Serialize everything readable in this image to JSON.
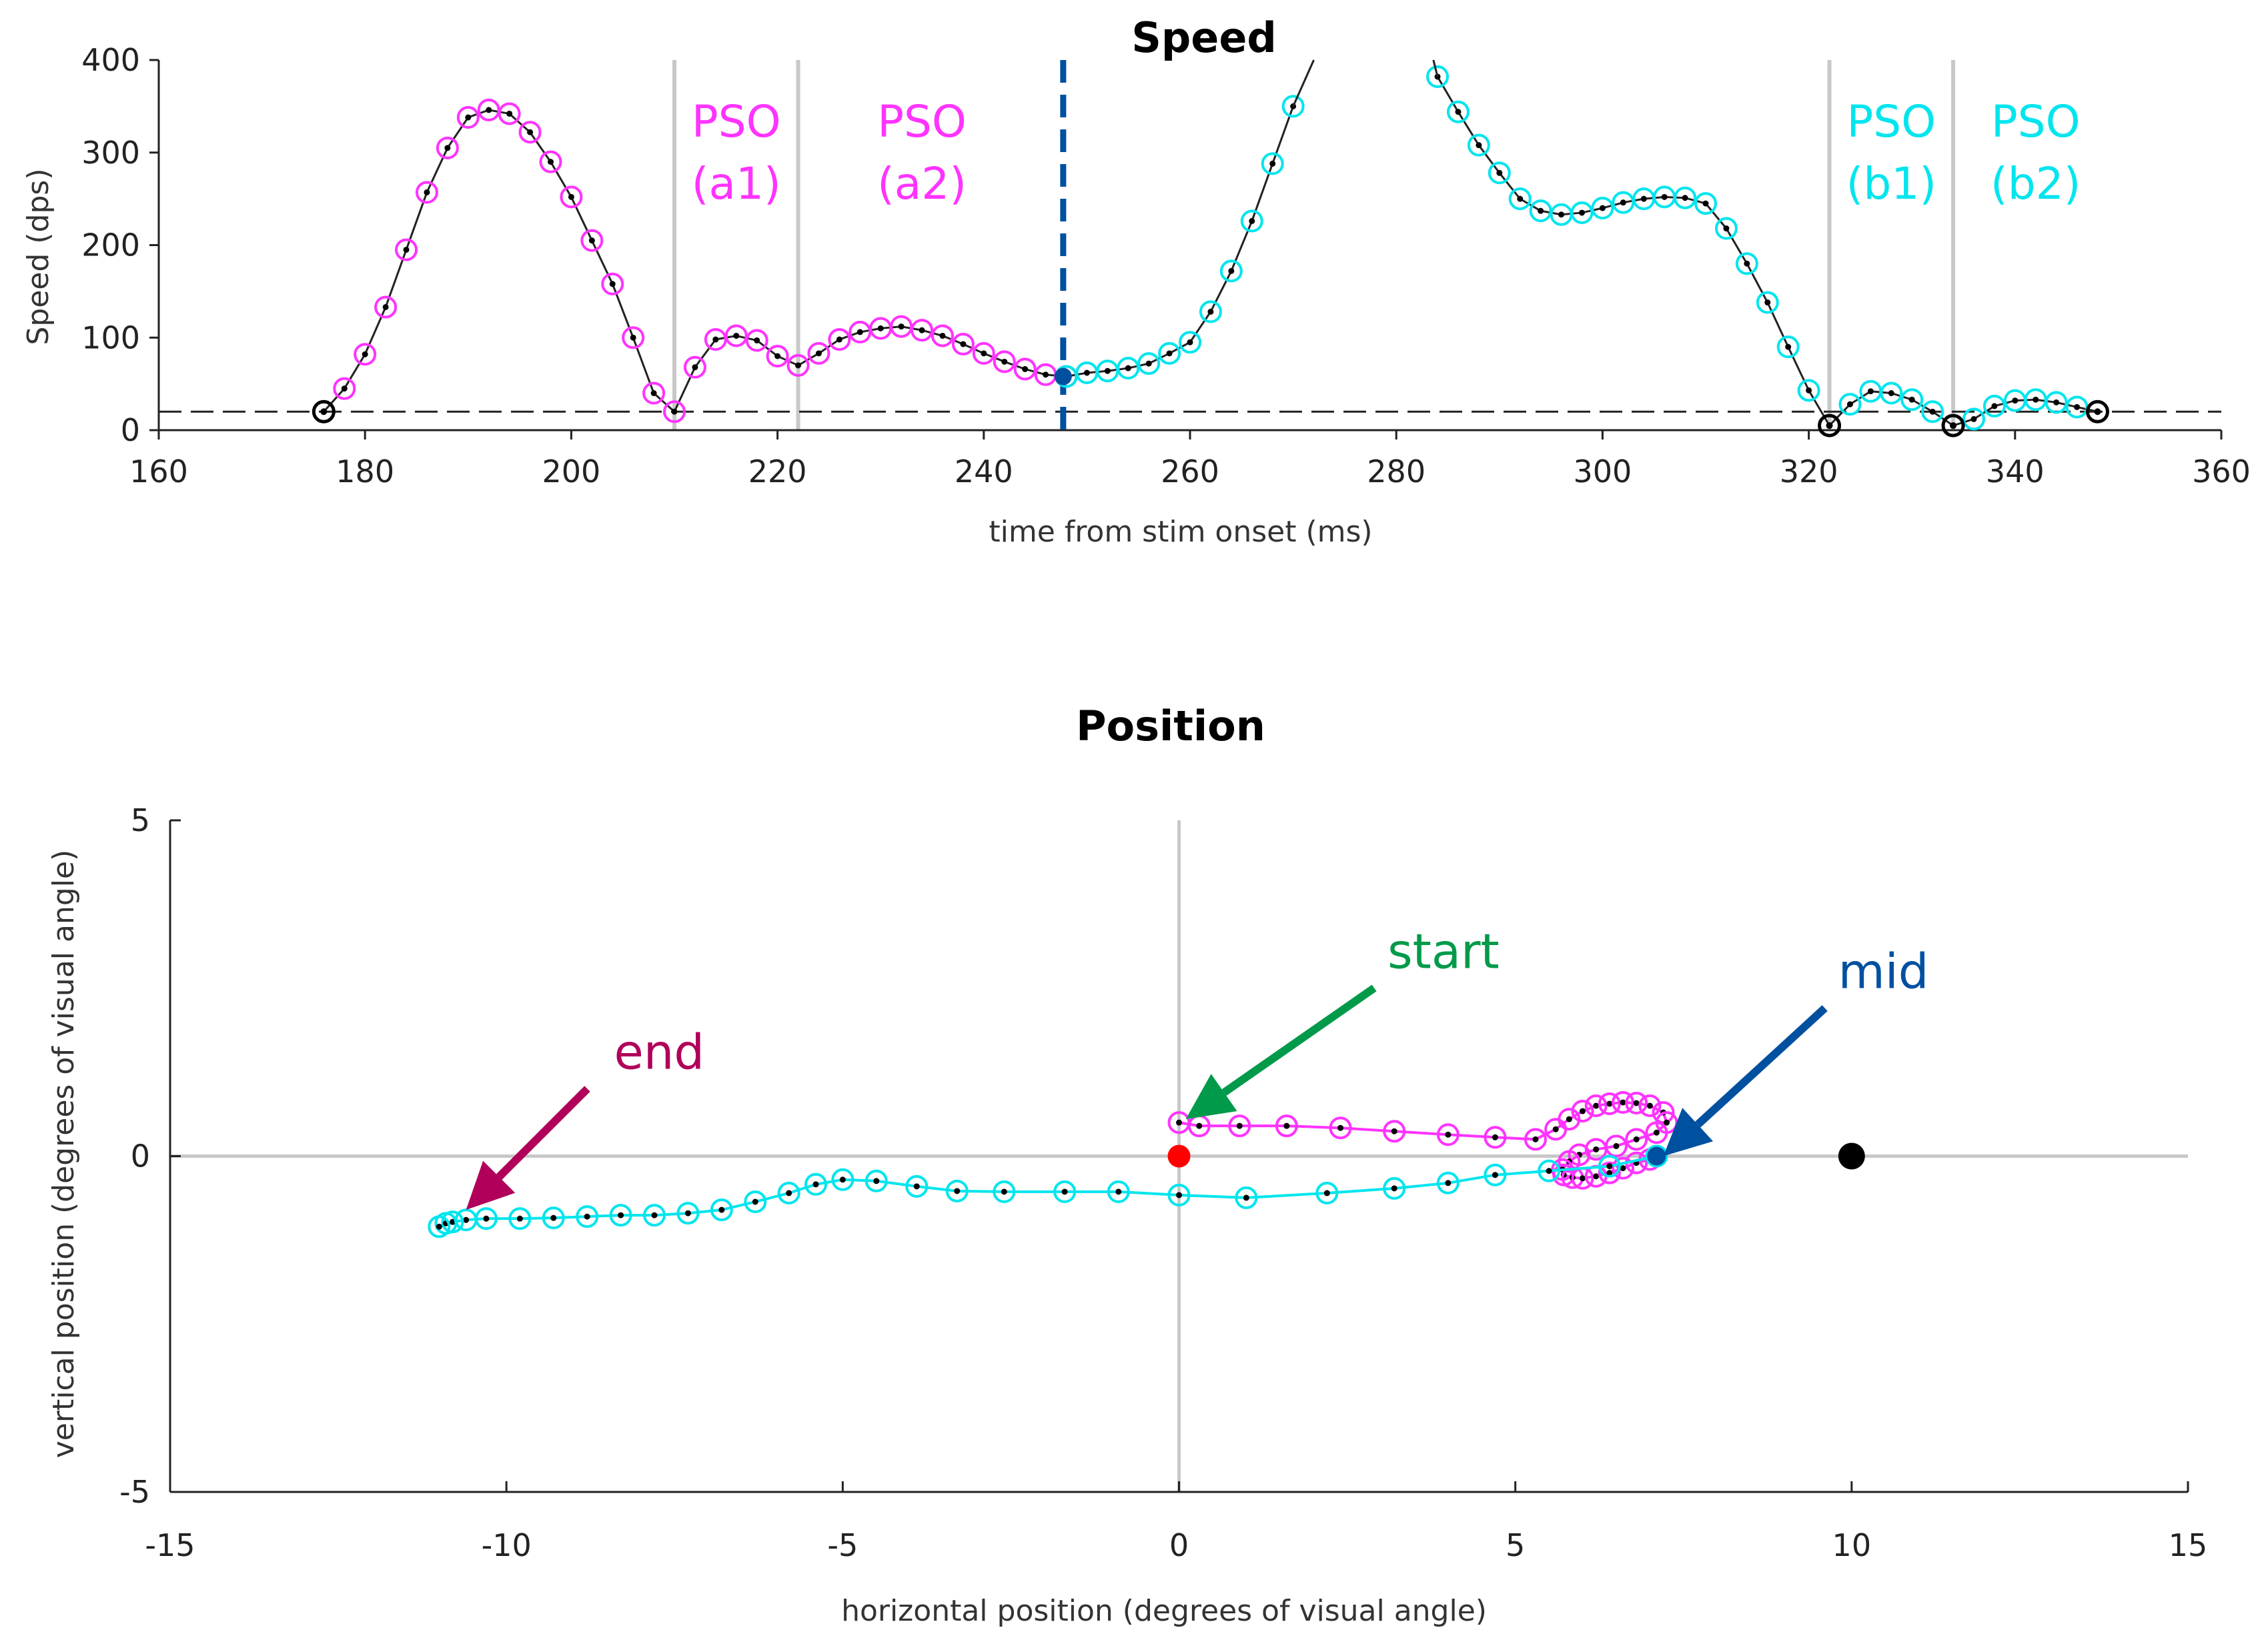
{
  "colors": {
    "pso_a": "#ff33ff",
    "pso_b": "#00e5ee",
    "mid": "#0050a0",
    "start": "#009a4a",
    "end": "#b0005a",
    "curve": "#222222",
    "origin_dot": "#ff0000",
    "target_dot": "#000000",
    "gray": "#c8c8c8"
  },
  "chart_data": [
    {
      "type": "line",
      "title": "Speed",
      "xlabel": "time  from stim onset (ms)",
      "ylabel": "Speed (dps)",
      "xlim": [
        160,
        360
      ],
      "ylim": [
        0,
        400
      ],
      "xticks": [
        "160",
        "180",
        "200",
        "220",
        "240",
        "260",
        "280",
        "300",
        "320",
        "340",
        "360"
      ],
      "yticks": [
        "0",
        "100",
        "200",
        "300",
        "400"
      ],
      "threshold": 20,
      "midline_time": 247.7,
      "pso_boundaries": [
        210,
        222,
        322,
        334
      ],
      "pso_labels": [
        {
          "line1": "PSO",
          "line2": "(a1)",
          "group": "a",
          "x": 216
        },
        {
          "line1": "PSO",
          "line2": "(a2)",
          "group": "a",
          "x": 234
        },
        {
          "line1": "PSO",
          "line2": "(b1)",
          "group": "b",
          "x": 328
        },
        {
          "line1": "PSO",
          "line2": "(b2)",
          "group": "b",
          "x": 342
        }
      ],
      "series": [
        {
          "name": "first saccade (magenta)",
          "group": "a",
          "x": [
            176,
            178,
            180,
            182,
            184,
            186,
            188,
            190,
            192,
            194,
            196,
            198,
            200,
            202,
            204,
            206,
            208,
            210,
            212,
            214,
            216,
            218,
            220,
            222,
            224,
            226,
            228,
            230,
            232,
            234,
            236,
            238,
            240,
            242,
            244,
            246,
            248
          ],
          "y": [
            20,
            45,
            82,
            133,
            195,
            257,
            305,
            338,
            346,
            342,
            322,
            290,
            252,
            205,
            158,
            100,
            40,
            20,
            68,
            98,
            102,
            97,
            80,
            70,
            83,
            98,
            106,
            110,
            112,
            108,
            102,
            93,
            83,
            74,
            66,
            60,
            58
          ]
        },
        {
          "name": "second saccade rising (cyan)",
          "group": "b",
          "x": [
            248,
            250,
            252,
            254,
            256,
            258,
            260,
            262,
            264,
            266,
            268,
            270
          ],
          "y": [
            58,
            62,
            64,
            67,
            72,
            83,
            95,
            128,
            172,
            226,
            288,
            350
          ]
        },
        {
          "name": "second saccade falling (cyan)",
          "group": "b",
          "x": [
            284,
            286,
            288,
            290,
            292,
            294,
            296,
            298,
            300,
            302,
            304,
            306,
            308,
            310,
            312,
            314,
            316,
            318,
            320,
            322,
            324,
            326,
            328,
            330,
            332,
            334,
            336,
            338,
            340,
            342,
            344,
            346,
            348
          ],
          "y": [
            382,
            344,
            308,
            278,
            250,
            237,
            233,
            235,
            240,
            246,
            250,
            252,
            251,
            245,
            218,
            180,
            138,
            90,
            43,
            5,
            28,
            42,
            40,
            33,
            20,
            5,
            12,
            26,
            32,
            33,
            30,
            25,
            20
          ]
        }
      ],
      "bold_markers": [
        {
          "x": 176,
          "y": 20
        },
        {
          "x": 322,
          "y": 5
        },
        {
          "x": 334,
          "y": 5
        },
        {
          "x": 348,
          "y": 20
        }
      ],
      "mid_point": {
        "x": 247.7,
        "y": 58
      }
    },
    {
      "type": "line",
      "title": "Position",
      "xlabel": "horizontal position  (degrees of visual angle)",
      "ylabel": "vertical position  (degrees of visual angle)",
      "xlim": [
        -15,
        15
      ],
      "ylim": [
        -5,
        5
      ],
      "xticks": [
        "-15",
        "-10",
        "-5",
        "0",
        "5",
        "10",
        "15"
      ],
      "yticks": [
        "-5",
        "0",
        "5"
      ],
      "origin_point": {
        "x": 0,
        "y": 0
      },
      "target_point": {
        "x": 10,
        "y": 0
      },
      "mid_point": {
        "x": 7.1,
        "y": 0
      },
      "series": [
        {
          "name": "first saccade path (magenta)",
          "group": "a",
          "x": [
            0,
            0.3,
            0.9,
            1.6,
            2.4,
            3.2,
            4.0,
            4.7,
            5.3,
            5.6,
            5.8,
            6.0,
            6.2,
            6.4,
            6.6,
            6.8,
            7.0,
            7.2,
            7.25,
            7.1,
            6.8,
            6.5,
            6.2,
            5.95,
            5.8,
            5.7,
            5.72,
            5.85,
            6.0,
            6.2,
            6.4,
            6.6,
            6.8,
            7.0,
            7.1
          ],
          "y": [
            0.5,
            0.45,
            0.45,
            0.45,
            0.42,
            0.37,
            0.32,
            0.28,
            0.25,
            0.4,
            0.55,
            0.67,
            0.75,
            0.78,
            0.8,
            0.79,
            0.75,
            0.65,
            0.5,
            0.35,
            0.25,
            0.15,
            0.1,
            0.02,
            -0.08,
            -0.2,
            -0.28,
            -0.32,
            -0.33,
            -0.3,
            -0.25,
            -0.18,
            -0.1,
            -0.05,
            0
          ]
        },
        {
          "name": "second saccade path (cyan)",
          "group": "b",
          "x": [
            7.1,
            6.4,
            5.5,
            4.7,
            4.0,
            3.2,
            2.2,
            1.0,
            0,
            -0.9,
            -1.7,
            -2.6,
            -3.3,
            -3.9,
            -4.5,
            -5.0,
            -5.4,
            -5.8,
            -6.3,
            -6.8,
            -7.3,
            -7.8,
            -8.3,
            -8.8,
            -9.3,
            -9.8,
            -10.3,
            -10.6,
            -10.8,
            -10.9,
            -11.0
          ],
          "y": [
            0,
            -0.15,
            -0.22,
            -0.28,
            -0.4,
            -0.48,
            -0.55,
            -0.62,
            -0.58,
            -0.53,
            -0.53,
            -0.53,
            -0.52,
            -0.45,
            -0.37,
            -0.35,
            -0.42,
            -0.55,
            -0.68,
            -0.8,
            -0.85,
            -0.88,
            -0.88,
            -0.9,
            -0.92,
            -0.93,
            -0.93,
            -0.95,
            -0.98,
            -1.0,
            -1.05
          ]
        }
      ],
      "annotations": [
        {
          "label": "start",
          "group": "start",
          "tx": 3.1,
          "ty": 3.0,
          "ax": 0.1,
          "ay": 0.55
        },
        {
          "label": "mid",
          "group": "mid",
          "tx": 9.8,
          "ty": 2.7,
          "ax": 7.2,
          "ay": 0.0
        },
        {
          "label": "end",
          "group": "end",
          "tx": -8.4,
          "ty": 1.5,
          "ax": -10.6,
          "ay": -0.8
        }
      ]
    }
  ]
}
